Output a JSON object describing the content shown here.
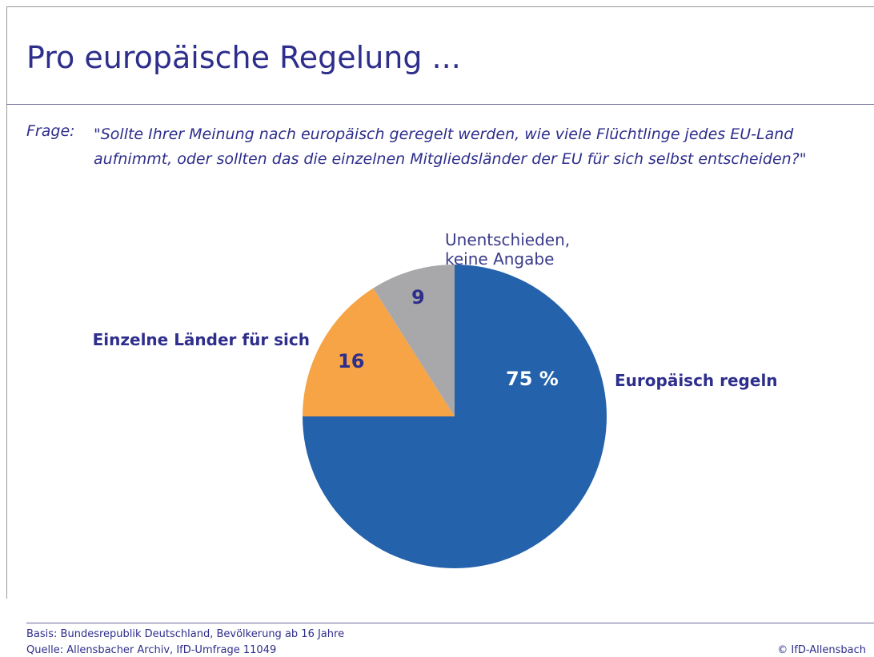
{
  "header": {
    "title": "Pro europäische Regelung ..."
  },
  "question": {
    "label": "Frage:",
    "text": "\"Sollte Ihrer Meinung nach europäisch geregelt werden, wie viele Flüchtlinge jedes EU-Land aufnimmt, oder sollten das die einzelnen Mitgliedsländer der EU für sich selbst entscheiden?\""
  },
  "chart_data": {
    "type": "pie",
    "categories": [
      "Europäisch regeln",
      "Einzelne Länder für sich",
      "Unentschieden, keine Angabe"
    ],
    "values": [
      75,
      16,
      9
    ],
    "value_labels": [
      "75 %",
      "16",
      "9"
    ],
    "colors": [
      "#2462ab",
      "#f6a445",
      "#a8a8aa"
    ]
  },
  "footer": {
    "basis": "Basis: Bundesrepublik Deutschland, Bevölkerung ab 16 Jahre",
    "source": "Quelle: Allensbacher Archiv, IfD-Umfrage 11049",
    "copyright": "© IfD-Allensbach"
  }
}
